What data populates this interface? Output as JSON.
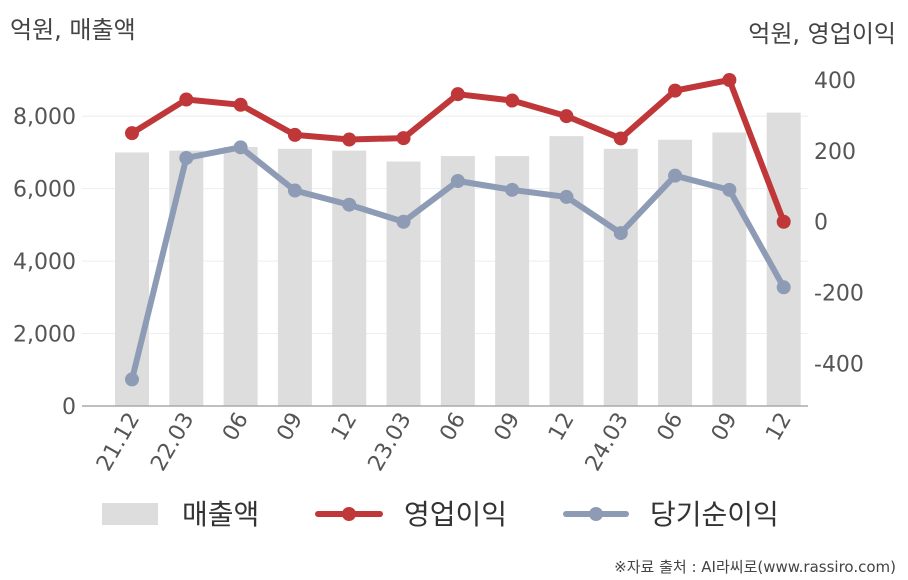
{
  "chart_data": {
    "type": "bar+line",
    "left_axis_unit": "억원, 매출액",
    "right_axis_unit": "억원, 영업이익",
    "categories": [
      "21.12",
      "22.03",
      "06",
      "09",
      "12",
      "23.03",
      "06",
      "09",
      "12",
      "24.03",
      "06",
      "09",
      "12"
    ],
    "left_ylim": [
      0,
      9000
    ],
    "left_ticks": [
      0,
      2000,
      4000,
      6000,
      8000
    ],
    "left_tick_labels": [
      "0",
      "2,000",
      "4,000",
      "6,000",
      "8,000"
    ],
    "right_ylim": [
      -520,
      400
    ],
    "right_ticks": [
      -400,
      -200,
      0,
      200,
      400
    ],
    "right_tick_labels": [
      "-400",
      "-200",
      "0",
      "200",
      "400"
    ],
    "series": [
      {
        "name": "매출액",
        "type": "bar",
        "axis": "left",
        "color": "#dddddd",
        "values": [
          7000,
          7050,
          7150,
          7100,
          7050,
          6750,
          6900,
          6900,
          7450,
          7100,
          7350,
          7550,
          8100
        ]
      },
      {
        "name": "영업이익",
        "type": "line",
        "axis": "right",
        "color": "#c0373a",
        "values": [
          250,
          345,
          330,
          245,
          232,
          236,
          360,
          342,
          298,
          235,
          370,
          400,
          0
        ]
      },
      {
        "name": "당기순이익",
        "type": "line",
        "axis": "right",
        "color": "#8e9bb5",
        "values": [
          -445,
          180,
          210,
          88,
          48,
          0,
          115,
          90,
          70,
          -32,
          130,
          90,
          -185
        ]
      }
    ],
    "legend_position": "bottom",
    "grid": true
  },
  "source_note": "※자료 출처 : AI라씨로(www.rassiro.com)"
}
